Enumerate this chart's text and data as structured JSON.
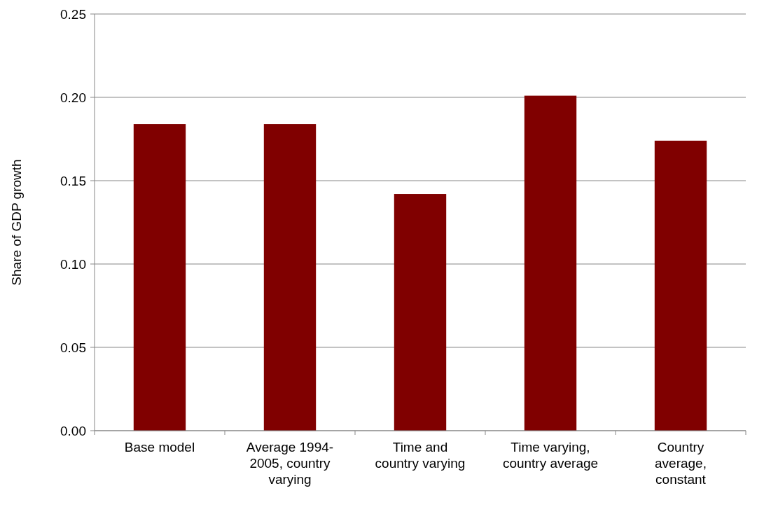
{
  "chart_data": {
    "type": "bar",
    "ylabel": "Share of GDP growth",
    "categories": [
      "Base model",
      "Average 1994-\n2005, country\nvarying",
      "Time and\ncountry varying",
      "Time varying,\ncountry average",
      "Country\naverage,\nconstant"
    ],
    "values": [
      0.184,
      0.184,
      0.142,
      0.201,
      0.174
    ],
    "color": "#800000",
    "ylim": [
      0,
      0.25
    ],
    "yticks": [
      {
        "value": 0,
        "label": "0.00"
      },
      {
        "value": 0.05,
        "label": "0.05"
      },
      {
        "value": 0.1,
        "label": "0.10"
      },
      {
        "value": 0.15,
        "label": "0.15"
      },
      {
        "value": 0.2,
        "label": "0.20"
      },
      {
        "value": 0.25,
        "label": "0.25"
      }
    ],
    "grid": "y"
  }
}
